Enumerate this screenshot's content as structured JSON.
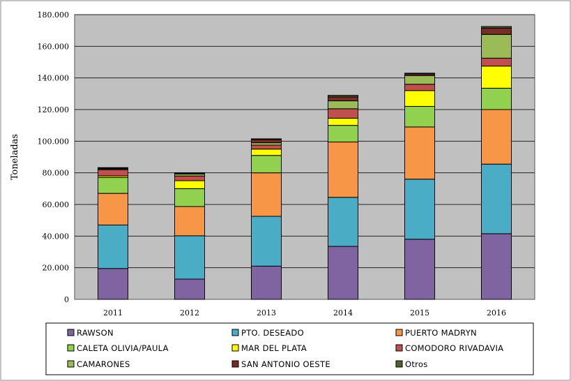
{
  "chart_data": {
    "type": "bar",
    "stacked": true,
    "title": "",
    "xlabel": "",
    "ylabel": "Toneladas",
    "ylim": [
      0,
      180000
    ],
    "yticks": [
      "0",
      "20.000",
      "40.000",
      "60.000",
      "80.000",
      "100.000",
      "120.000",
      "140.000",
      "160.000",
      "180.000"
    ],
    "ytick_values": [
      0,
      20000,
      40000,
      60000,
      80000,
      100000,
      120000,
      140000,
      160000,
      180000
    ],
    "grid": true,
    "legend_position": "bottom",
    "categories": [
      "2011",
      "2012",
      "2013",
      "2014",
      "2015",
      "2016"
    ],
    "series": [
      {
        "name": "RAWSON",
        "color": "#8064a2",
        "values": [
          19500,
          12800,
          21000,
          33500,
          38000,
          41500
        ]
      },
      {
        "name": "PTO. DESEADO",
        "color": "#4bacc6",
        "values": [
          27500,
          27400,
          31500,
          31000,
          38000,
          44000
        ]
      },
      {
        "name": "PUERTO MADRYN",
        "color": "#f79646",
        "values": [
          20000,
          18500,
          27500,
          35000,
          33000,
          34500
        ]
      },
      {
        "name": "CALETA OLIVIA/PAULA",
        "color": "#92d050",
        "values": [
          10000,
          11300,
          11000,
          10500,
          13000,
          13500
        ]
      },
      {
        "name": "MAR DEL PLATA",
        "color": "#ffff00",
        "values": [
          1000,
          5000,
          4000,
          4500,
          10000,
          14000
        ]
      },
      {
        "name": "COMODORO RIVADAVIA",
        "color": "#c0504d",
        "values": [
          4000,
          3000,
          2500,
          6000,
          4000,
          5000
        ]
      },
      {
        "name": "CAMARONES",
        "color": "#9bbb59",
        "values": [
          500,
          1200,
          1500,
          5000,
          5500,
          15000
        ]
      },
      {
        "name": "SAN ANTONIO OESTE",
        "color": "#772c2a",
        "values": [
          500,
          500,
          2000,
          2500,
          1000,
          4000
        ]
      },
      {
        "name": "Otros",
        "color": "#4f6228",
        "values": [
          300,
          300,
          500,
          1000,
          500,
          1000
        ]
      }
    ]
  }
}
